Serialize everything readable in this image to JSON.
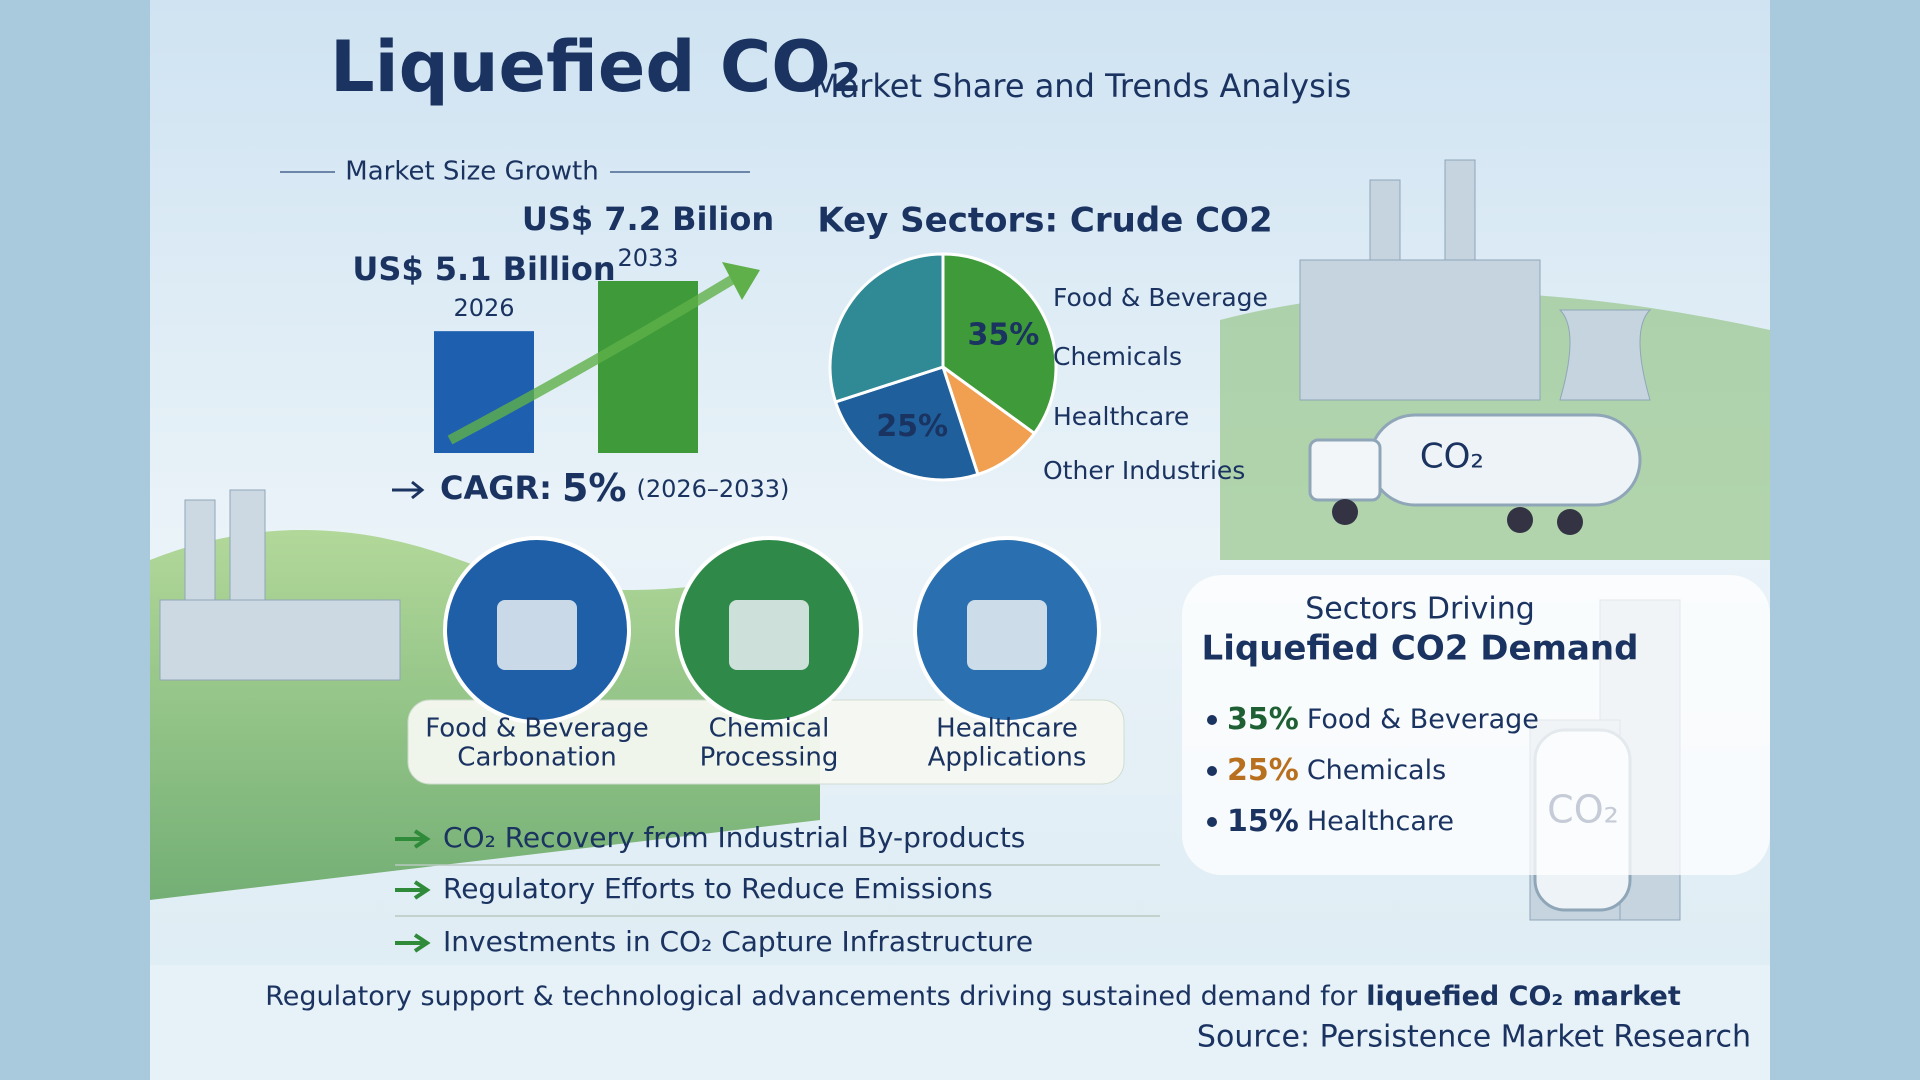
{
  "header": {
    "title": "Liquefied CO₂",
    "subtitle": "Market Share and Trends Analysis"
  },
  "chart_data": [
    {
      "type": "bar",
      "title": "Market Size Growth",
      "categories": [
        "2026",
        "2033"
      ],
      "values": [
        5.1,
        7.2
      ],
      "value_labels": [
        "US$ 5.1 Billion",
        "US$ 7.2 Bilion"
      ],
      "colors": [
        "#1f5fb0",
        "#3f9a3a"
      ]
    },
    {
      "type": "pie",
      "title": "Key Sectors: Crude CO2",
      "categories": [
        "Food & Beverage",
        "Chemicals",
        "Healthcare",
        "Other Industries"
      ],
      "values": [
        35,
        10,
        25,
        30
      ],
      "value_labels": [
        "35%",
        null,
        "25%",
        null
      ],
      "colors": [
        "#3f9a3a",
        "#f0a050",
        "#1f5f9c",
        "#2f8a96"
      ],
      "label_colors": [
        "#1f5f34",
        "#b8701e",
        "#1f3f6e",
        "#1f3f6e"
      ]
    }
  ],
  "cagr": {
    "label": "CAGR:",
    "value": "5%",
    "period": "(2026–2033)"
  },
  "applications": [
    {
      "line1": "Food & Beverage",
      "line2": "Carbonation"
    },
    {
      "line1": "Chemical",
      "line2": "Processing"
    },
    {
      "line1": "Healthcare",
      "line2": "Applications"
    }
  ],
  "drivers": [
    "CO₂ Recovery from Industrial By-products",
    "Regulatory Efforts to Reduce Emissions",
    "Investments in CO₂ Capture Infrastructure"
  ],
  "demand_panel": {
    "title_line1": "Sectors Driving",
    "title_line2": "Liquefied CO2 Demand",
    "items": [
      {
        "share": "35%",
        "name": "Food & Beverage"
      },
      {
        "share": "25%",
        "name": "Chemicals"
      },
      {
        "share": "15%",
        "name": "Healthcare"
      }
    ]
  },
  "tank_label": "CO₂",
  "footer": {
    "text": "Regulatory support & technological advancements driving sustained demand for",
    "bold": "liquefied CO₂ market",
    "source": "Source: Persistence Market Research"
  }
}
